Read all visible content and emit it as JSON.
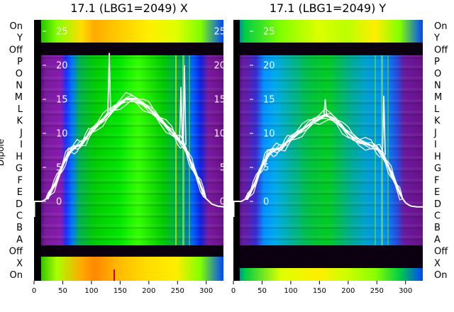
{
  "chart_data": [
    {
      "type": "heatmap",
      "title": "17.1 (LBG1=2049) X",
      "ylabel": "Dipole",
      "xlim": [
        0,
        330
      ],
      "x_ticks": [
        "0",
        "50",
        "100",
        "150",
        "200",
        "250",
        "300"
      ],
      "row_labels": [
        "On",
        "Y",
        "Off",
        "P",
        "O",
        "N",
        "M",
        "L",
        "K",
        "J",
        "I",
        "H",
        "G",
        "F",
        "E",
        "D",
        "C",
        "B",
        "A",
        "Off",
        "X",
        "On"
      ],
      "overlay_ticks": [
        "25",
        "20",
        "15",
        "10",
        "5",
        "0"
      ],
      "overlay_ylim": [
        0,
        25
      ],
      "overlay_series": {
        "x": [
          0,
          10,
          14,
          20,
          25,
          30,
          35,
          40,
          45,
          50,
          55,
          60,
          65,
          70,
          75,
          80,
          85,
          90,
          95,
          100,
          110,
          120,
          130,
          140,
          150,
          160,
          170,
          180,
          190,
          200,
          210,
          220,
          230,
          240,
          245,
          250,
          255,
          260,
          265,
          270,
          275,
          280,
          285,
          290,
          295,
          300,
          305,
          310,
          320,
          330
        ],
        "y": [
          0,
          0,
          0,
          0.3,
          0.8,
          1.6,
          2.3,
          3.2,
          4.2,
          5.3,
          6.3,
          7.1,
          7.6,
          7.9,
          8.1,
          8.3,
          8.7,
          9.2,
          9.8,
          10.3,
          11.2,
          12.0,
          12.9,
          13.7,
          14.4,
          15.0,
          15.1,
          14.8,
          14.3,
          13.7,
          12.9,
          12.0,
          11.1,
          10.2,
          9.7,
          9.2,
          8.7,
          8.3,
          7.5,
          6.4,
          5.4,
          4.4,
          3.4,
          2.4,
          1.2,
          0.4,
          0,
          -0.4,
          -0.7,
          -0.8
        ]
      },
      "overlay_spikes": [
        {
          "x": 131,
          "y": 21.8
        },
        {
          "x": 262,
          "y": 20.0
        },
        {
          "x": 256,
          "y": 16.8
        }
      ]
    },
    {
      "type": "heatmap",
      "title": "17.1 (LBG1=2049) Y",
      "xlim": [
        0,
        330
      ],
      "x_ticks": [
        "0",
        "50",
        "100",
        "150",
        "200",
        "250",
        "300"
      ],
      "row_labels": [
        "On",
        "Y",
        "Off",
        "P",
        "O",
        "N",
        "M",
        "L",
        "K",
        "J",
        "I",
        "H",
        "G",
        "F",
        "E",
        "D",
        "C",
        "B",
        "A",
        "Off",
        "X",
        "On"
      ],
      "overlay_ticks": [
        "25",
        "20",
        "15",
        "10",
        "5",
        "0"
      ],
      "overlay_ylim": [
        0,
        25
      ],
      "overlay_series": {
        "x": [
          0,
          10,
          14,
          20,
          25,
          30,
          35,
          40,
          45,
          50,
          55,
          60,
          65,
          70,
          75,
          80,
          85,
          90,
          95,
          100,
          110,
          120,
          130,
          140,
          150,
          160,
          170,
          180,
          190,
          200,
          210,
          220,
          230,
          240,
          245,
          250,
          255,
          260,
          265,
          270,
          275,
          280,
          285,
          290,
          295,
          300,
          305,
          310,
          320,
          330
        ],
        "y": [
          0,
          0,
          0,
          0.3,
          0.7,
          1.4,
          2.2,
          3.1,
          4.2,
          5.2,
          6.1,
          6.9,
          7.3,
          7.5,
          7.6,
          7.8,
          8.0,
          8.4,
          8.8,
          9.2,
          9.9,
          10.5,
          11.2,
          11.8,
          12.2,
          12.6,
          12.4,
          11.8,
          10.9,
          10.0,
          9.3,
          8.8,
          8.5,
          8.2,
          8.0,
          7.8,
          7.4,
          6.8,
          6.0,
          5.1,
          4.2,
          3.2,
          2.2,
          1.2,
          0.4,
          -0.2,
          -0.5,
          -0.7,
          -0.8,
          -0.8
        ]
      },
      "overlay_spikes": [
        {
          "x": 160,
          "y": 15.0
        },
        {
          "x": 262,
          "y": 15.5
        }
      ]
    }
  ]
}
